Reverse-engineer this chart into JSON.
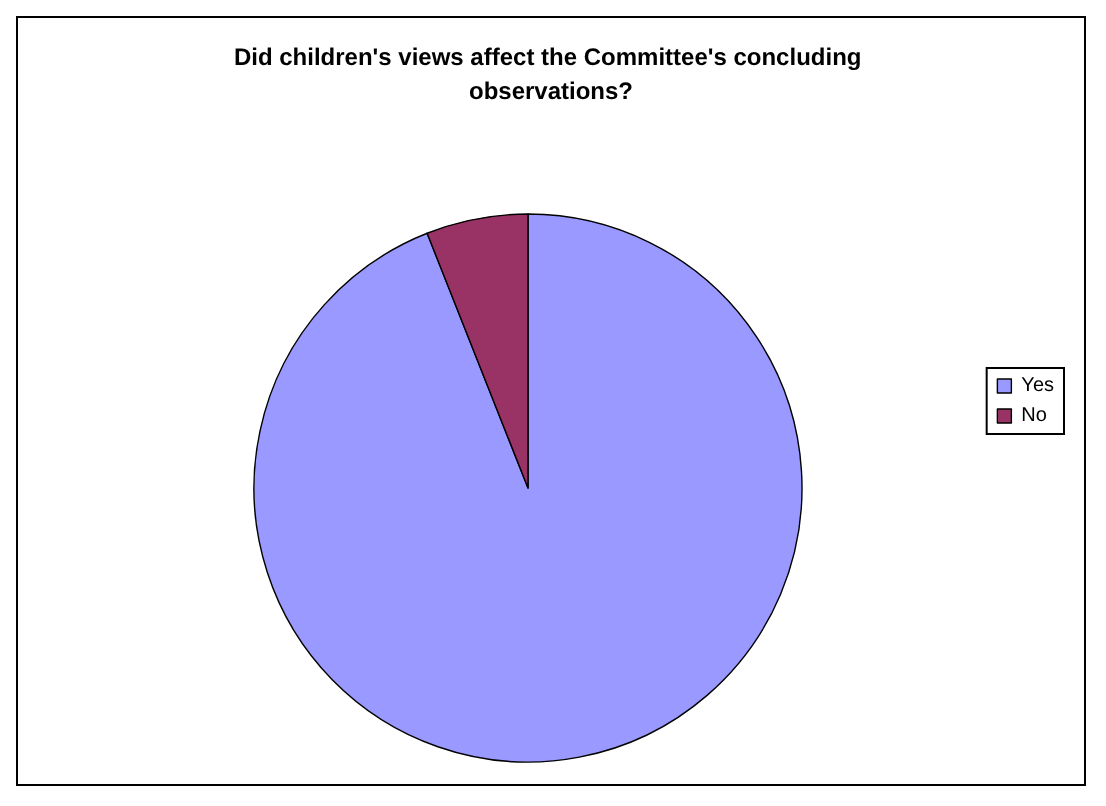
{
  "chart_data": {
    "type": "pie",
    "title": "Did children's views affect the Committee's concluding observations?",
    "categories": [
      "Yes",
      "No"
    ],
    "values": [
      94,
      6
    ],
    "colors": [
      "#9999ff",
      "#993366"
    ],
    "legend": "right"
  }
}
